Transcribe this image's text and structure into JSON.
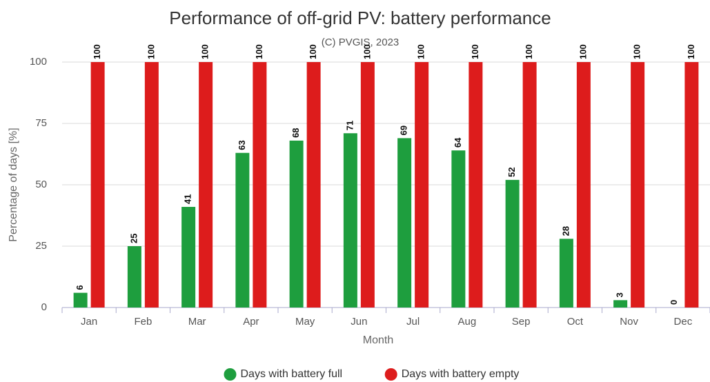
{
  "chart_data": {
    "type": "bar",
    "title": "Performance of off-grid PV: battery performance",
    "subtitle": "(C) PVGIS, 2023",
    "x_label": "Month",
    "y_label": "Percentage of days [%]",
    "categories": [
      "Jan",
      "Feb",
      "Mar",
      "Apr",
      "May",
      "Jun",
      "Jul",
      "Aug",
      "Sep",
      "Oct",
      "Nov",
      "Dec"
    ],
    "series": [
      {
        "name": "Days with battery full",
        "color": "#1e9e3e",
        "values": [
          6,
          25,
          41,
          63,
          68,
          71,
          69,
          64,
          52,
          28,
          3,
          0
        ]
      },
      {
        "name": "Days with battery empty",
        "color": "#dd1c1c",
        "values": [
          100,
          100,
          100,
          100,
          100,
          100,
          100,
          100,
          100,
          100,
          100,
          100
        ]
      }
    ],
    "ylim": [
      0,
      100
    ],
    "yticks": [
      0,
      25,
      50,
      75,
      100
    ],
    "grid": true,
    "legend": "bottom"
  }
}
